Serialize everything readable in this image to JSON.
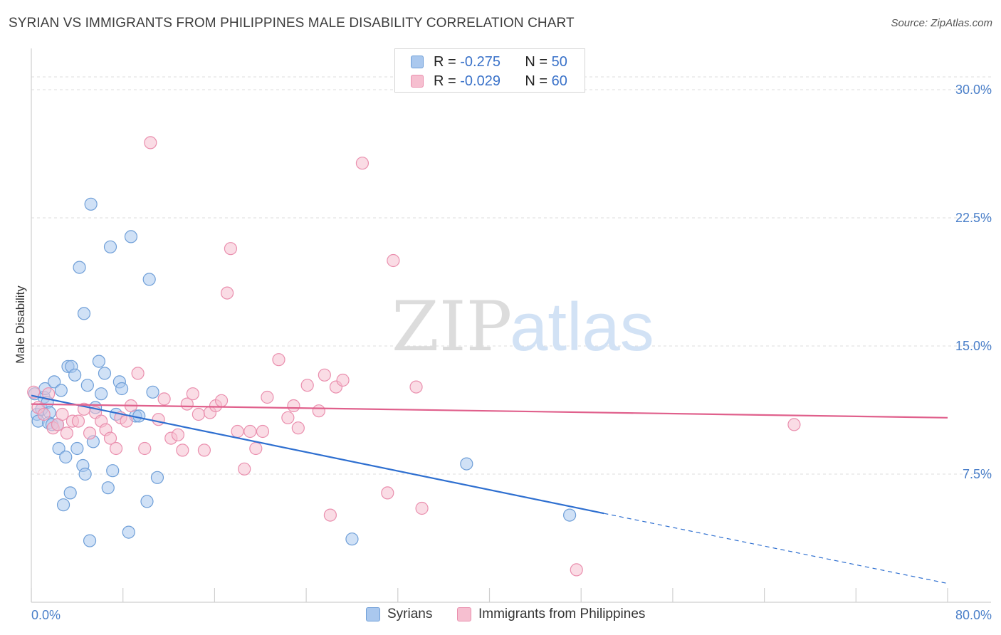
{
  "title": "SYRIAN VS IMMIGRANTS FROM PHILIPPINES MALE DISABILITY CORRELATION CHART",
  "source": "Source: ZipAtlas.com",
  "watermark": {
    "zip": "ZIP",
    "atlas": "atlas"
  },
  "legend": {
    "rows": [
      {
        "r_label": "R =",
        "r_value": "-0.275",
        "n_label": "N =",
        "n_value": "50"
      },
      {
        "r_label": "R =",
        "r_value": "-0.029",
        "n_label": "N =",
        "n_value": "60"
      }
    ]
  },
  "bottom_legend": [
    "Syrians",
    "Immigrants from Philippines"
  ],
  "colors": {
    "syrians_fill": "#aac8ee",
    "syrians_stroke": "#6f9fd8",
    "syrians_line": "#2e6fd0",
    "phil_fill": "#f6bfd0",
    "phil_stroke": "#ea8fae",
    "phil_line": "#e0608c",
    "grid": "#dedede",
    "axis_text": "#4a7fc9"
  },
  "chart_data": {
    "type": "scatter",
    "xlabel": "",
    "ylabel": "Male Disability",
    "xlim": [
      0,
      80
    ],
    "ylim": [
      0,
      32
    ],
    "x_tick_labels": [
      "0.0%",
      "80.0%"
    ],
    "y_ticks": [
      7.5,
      15.0,
      22.5,
      30.0
    ],
    "y_tick_labels": [
      "7.5%",
      "15.0%",
      "22.5%",
      "30.0%"
    ],
    "grid": "horizontal dashed",
    "series": [
      {
        "name": "Syrians",
        "points": [
          [
            0.3,
            12.2
          ],
          [
            0.5,
            11.0
          ],
          [
            0.6,
            10.6
          ],
          [
            0.9,
            11.3
          ],
          [
            1.1,
            12.0
          ],
          [
            1.2,
            12.5
          ],
          [
            1.4,
            11.7
          ],
          [
            1.6,
            11.1
          ],
          [
            1.5,
            10.5
          ],
          [
            1.8,
            10.4
          ],
          [
            2.0,
            12.9
          ],
          [
            2.3,
            10.4
          ],
          [
            2.4,
            9.0
          ],
          [
            2.6,
            12.4
          ],
          [
            2.8,
            5.7
          ],
          [
            3.0,
            8.5
          ],
          [
            3.2,
            13.8
          ],
          [
            3.4,
            6.4
          ],
          [
            3.5,
            13.8
          ],
          [
            3.8,
            13.3
          ],
          [
            4.0,
            9.0
          ],
          [
            4.2,
            19.6
          ],
          [
            4.5,
            8.0
          ],
          [
            4.6,
            16.9
          ],
          [
            4.7,
            7.5
          ],
          [
            4.9,
            12.7
          ],
          [
            5.1,
            3.6
          ],
          [
            5.2,
            23.3
          ],
          [
            5.4,
            9.4
          ],
          [
            5.6,
            11.4
          ],
          [
            5.9,
            14.1
          ],
          [
            6.1,
            12.2
          ],
          [
            6.4,
            13.4
          ],
          [
            6.7,
            6.7
          ],
          [
            6.9,
            20.8
          ],
          [
            7.1,
            7.7
          ],
          [
            7.4,
            11.0
          ],
          [
            7.7,
            12.9
          ],
          [
            7.9,
            12.5
          ],
          [
            8.5,
            4.1
          ],
          [
            8.7,
            21.4
          ],
          [
            9.1,
            10.9
          ],
          [
            9.4,
            10.9
          ],
          [
            10.1,
            5.9
          ],
          [
            10.3,
            18.9
          ],
          [
            10.6,
            12.3
          ],
          [
            11.0,
            7.3
          ],
          [
            28.0,
            3.7
          ],
          [
            38.0,
            8.1
          ],
          [
            47.0,
            5.1
          ]
        ]
      },
      {
        "name": "Immigrants from Philippines",
        "points": [
          [
            0.2,
            12.3
          ],
          [
            0.6,
            11.4
          ],
          [
            1.1,
            11.0
          ],
          [
            1.5,
            12.2
          ],
          [
            1.9,
            10.2
          ],
          [
            2.3,
            10.4
          ],
          [
            2.7,
            11.0
          ],
          [
            3.1,
            9.9
          ],
          [
            3.6,
            10.6
          ],
          [
            4.1,
            10.6
          ],
          [
            4.6,
            11.3
          ],
          [
            5.1,
            9.9
          ],
          [
            5.6,
            11.1
          ],
          [
            6.1,
            10.6
          ],
          [
            6.5,
            10.1
          ],
          [
            6.9,
            9.6
          ],
          [
            7.4,
            9.0
          ],
          [
            7.8,
            10.8
          ],
          [
            8.3,
            10.6
          ],
          [
            8.7,
            11.5
          ],
          [
            9.3,
            13.4
          ],
          [
            9.9,
            9.0
          ],
          [
            10.4,
            26.9
          ],
          [
            11.1,
            10.7
          ],
          [
            11.6,
            11.9
          ],
          [
            12.2,
            9.6
          ],
          [
            12.8,
            9.8
          ],
          [
            13.2,
            8.9
          ],
          [
            13.6,
            11.6
          ],
          [
            14.1,
            12.2
          ],
          [
            14.6,
            11.0
          ],
          [
            15.1,
            8.9
          ],
          [
            15.6,
            11.1
          ],
          [
            16.1,
            11.5
          ],
          [
            16.6,
            11.8
          ],
          [
            17.1,
            18.1
          ],
          [
            17.4,
            20.7
          ],
          [
            18.0,
            10.0
          ],
          [
            18.6,
            7.8
          ],
          [
            19.1,
            10.0
          ],
          [
            19.6,
            9.0
          ],
          [
            20.2,
            10.0
          ],
          [
            20.6,
            12.0
          ],
          [
            21.6,
            14.2
          ],
          [
            22.4,
            10.8
          ],
          [
            22.9,
            11.5
          ],
          [
            23.3,
            10.2
          ],
          [
            24.1,
            12.7
          ],
          [
            25.1,
            11.2
          ],
          [
            25.6,
            13.3
          ],
          [
            26.1,
            5.1
          ],
          [
            26.6,
            12.6
          ],
          [
            27.2,
            13.0
          ],
          [
            28.9,
            25.7
          ],
          [
            31.1,
            6.4
          ],
          [
            31.6,
            20.0
          ],
          [
            33.6,
            12.6
          ],
          [
            34.1,
            5.5
          ],
          [
            47.6,
            1.9
          ],
          [
            66.6,
            10.4
          ]
        ]
      }
    ],
    "trendlines": [
      {
        "series": "Syrians",
        "solid": [
          [
            0,
            12.1
          ],
          [
            50,
            5.2
          ]
        ],
        "dashed": [
          [
            50,
            5.2
          ],
          [
            80,
            1.1
          ]
        ]
      },
      {
        "series": "Immigrants from Philippines",
        "solid": [
          [
            0,
            11.6
          ],
          [
            80,
            10.8
          ]
        ]
      }
    ]
  }
}
